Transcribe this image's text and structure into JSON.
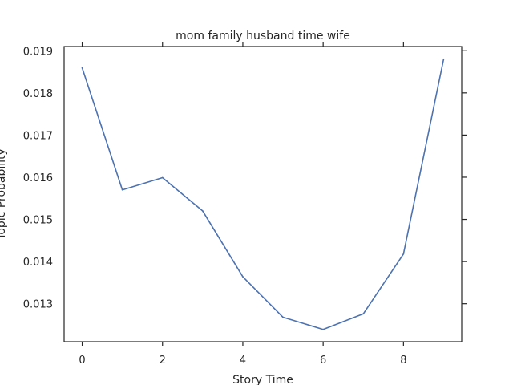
{
  "chart_data": {
    "type": "line",
    "title": "mom family husband time wife",
    "xlabel": "Story Time",
    "ylabel": "Topic Probability",
    "xlim": [
      -0.45,
      9.45
    ],
    "ylim": [
      0.0121,
      0.0191
    ],
    "grid": false,
    "x_ticks": [
      0,
      2,
      4,
      6,
      8
    ],
    "x_tick_labels": [
      "0",
      "2",
      "4",
      "6",
      "8"
    ],
    "y_ticks": [
      0.013,
      0.014,
      0.015,
      0.016,
      0.017,
      0.018,
      0.019
    ],
    "y_tick_labels": [
      "0.013",
      "0.014",
      "0.015",
      "0.016",
      "0.017",
      "0.018",
      "0.019"
    ],
    "series": [
      {
        "color": "#4c72b0",
        "x": [
          0,
          1,
          2,
          3,
          4,
          5,
          6,
          7,
          8,
          9
        ],
        "values": [
          0.01859,
          0.0157,
          0.01599,
          0.0152,
          0.01364,
          0.01268,
          0.01239,
          0.01276,
          0.01418,
          0.0188
        ]
      }
    ]
  }
}
